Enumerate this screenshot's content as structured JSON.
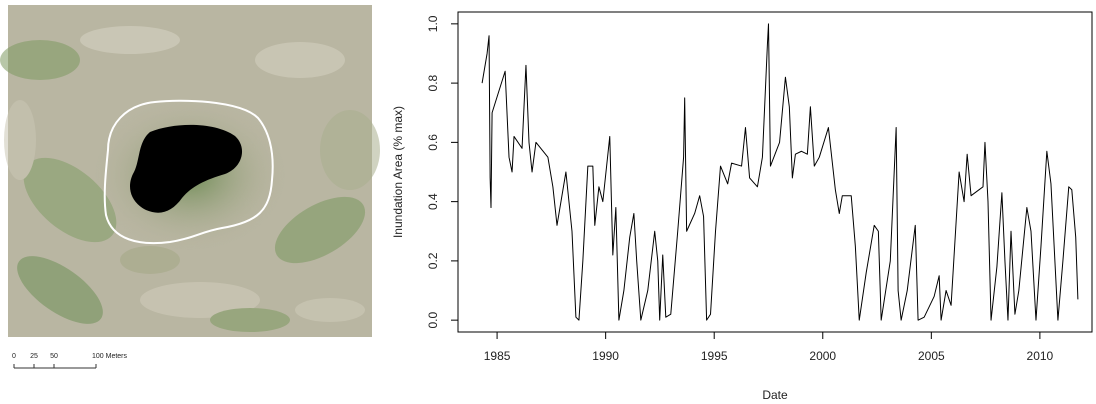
{
  "scale_bar": {
    "labels": [
      "0",
      "25",
      "50",
      "100 Meters"
    ]
  },
  "chart_data": {
    "type": "line",
    "x_label": "Date",
    "y_label": "Inundation Area (% max)",
    "color": "#000000",
    "xlim": [
      1983.2,
      2012.4
    ],
    "ylim": [
      -0.04,
      1.04
    ],
    "xticks": [
      1985,
      1990,
      1995,
      2000,
      2005,
      2010
    ],
    "yticks": [
      {
        "value": 0,
        "label": "0.0"
      },
      {
        "value": 0.2,
        "label": "0.2"
      },
      {
        "value": 0.4,
        "label": "0.4"
      },
      {
        "value": 0.6,
        "label": "0.6"
      },
      {
        "value": 0.8,
        "label": "0.8"
      },
      {
        "value": 1,
        "label": "1.0"
      }
    ],
    "x": [
      1984.31,
      1984.54,
      1984.63,
      1984.68,
      1984.72,
      1984.77,
      1985.37,
      1985.55,
      1985.69,
      1985.78,
      1986.15,
      1986.33,
      1986.47,
      1986.61,
      1986.79,
      1987.34,
      1987.57,
      1987.76,
      1988.17,
      1988.45,
      1988.63,
      1988.77,
      1988.95,
      1989.18,
      1989.41,
      1989.5,
      1989.69,
      1989.87,
      1990.19,
      1990.33,
      1990.47,
      1990.61,
      1990.84,
      1991.11,
      1991.3,
      1991.43,
      1991.62,
      1991.94,
      1992.26,
      1992.4,
      1992.49,
      1992.63,
      1992.77,
      1993,
      1993.32,
      1993.59,
      1993.64,
      1993.73,
      1994.1,
      1994.33,
      1994.51,
      1994.65,
      1994.83,
      1995.06,
      1995.29,
      1995.62,
      1995.8,
      1996.26,
      1996.44,
      1996.63,
      1996.99,
      1997.22,
      1997.45,
      1997.5,
      1997.59,
      1998.01,
      1998.28,
      1998.46,
      1998.6,
      1998.74,
      1999.02,
      1999.29,
      1999.43,
      1999.61,
      1999.84,
      2000.26,
      2000.58,
      2000.76,
      2000.9,
      2001.31,
      2001.5,
      2001.68,
      2002,
      2002.37,
      2002.56,
      2002.69,
      2003.11,
      2003.38,
      2003.47,
      2003.61,
      2003.89,
      2004.26,
      2004.39,
      2004.67,
      2005.13,
      2005.36,
      2005.45,
      2005.68,
      2005.91,
      2006.28,
      2006.51,
      2006.65,
      2006.83,
      2007.38,
      2007.47,
      2007.61,
      2007.75,
      2008.02,
      2008.25,
      2008.39,
      2008.53,
      2008.67,
      2008.85,
      2009.03,
      2009.4,
      2009.59,
      2009.82,
      2010.05,
      2010.32,
      2010.51,
      2010.83,
      2011.06,
      2011.33,
      2011.47,
      2011.65,
      2011.75
    ],
    "values": [
      0.8,
      0.9,
      0.96,
      0.48,
      0.38,
      0.7,
      0.84,
      0.55,
      0.5,
      0.62,
      0.58,
      0.86,
      0.6,
      0.5,
      0.6,
      0.55,
      0.45,
      0.32,
      0.5,
      0.3,
      0.01,
      0.0,
      0.2,
      0.52,
      0.52,
      0.32,
      0.45,
      0.4,
      0.62,
      0.22,
      0.38,
      0.0,
      0.1,
      0.28,
      0.36,
      0.2,
      0.0,
      0.1,
      0.3,
      0.2,
      0.0,
      0.22,
      0.01,
      0.02,
      0.3,
      0.55,
      0.75,
      0.3,
      0.36,
      0.42,
      0.35,
      0.0,
      0.02,
      0.3,
      0.52,
      0.46,
      0.53,
      0.52,
      0.65,
      0.48,
      0.45,
      0.55,
      0.93,
      1.0,
      0.52,
      0.6,
      0.82,
      0.72,
      0.48,
      0.56,
      0.57,
      0.56,
      0.72,
      0.52,
      0.55,
      0.65,
      0.44,
      0.36,
      0.42,
      0.42,
      0.25,
      0.0,
      0.16,
      0.32,
      0.3,
      0.0,
      0.2,
      0.65,
      0.1,
      0.0,
      0.1,
      0.32,
      0.0,
      0.01,
      0.08,
      0.15,
      0.0,
      0.1,
      0.05,
      0.5,
      0.4,
      0.56,
      0.42,
      0.45,
      0.6,
      0.4,
      0.0,
      0.18,
      0.43,
      0.2,
      0.0,
      0.3,
      0.02,
      0.1,
      0.38,
      0.3,
      0.0,
      0.25,
      0.57,
      0.46,
      0.0,
      0.2,
      0.45,
      0.44,
      0.28,
      0.07
    ]
  }
}
